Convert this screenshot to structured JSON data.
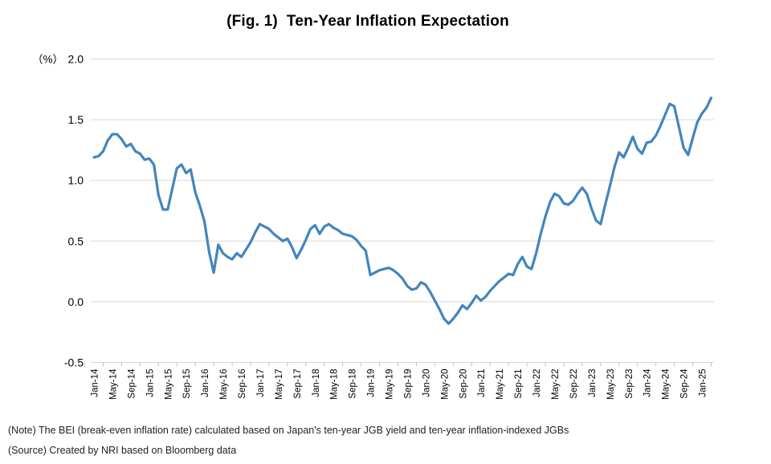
{
  "title": "(Fig. 1)  Ten-Year Inflation Expectation",
  "y_axis_unit": "（%）",
  "notes": {
    "note": "(Note) The BEI (break-even inflation rate) calculated based on Japan's ten-year JGB yield and ten-year inflation-indexed JGBs",
    "source": "(Source) Created by NRI based on Bloomberg data"
  },
  "chart_data": {
    "type": "line",
    "title": "(Fig. 1)  Ten-Year Inflation Expectation",
    "series_name": "Ten-year break-even inflation rate (BEI)",
    "ylabel": "（%）",
    "ylim": [
      -0.5,
      2.0
    ],
    "y_ticks": [
      2.0,
      1.5,
      1.0,
      0.5,
      0.0,
      -0.5
    ],
    "x_label_every": 4,
    "grid": true,
    "legend": false,
    "line_color": "#4285BE",
    "grid_color": "#D9D9D9",
    "tick_color": "#BFBFBF",
    "x": [
      "Jan-14",
      "Feb-14",
      "Mar-14",
      "Apr-14",
      "May-14",
      "Jun-14",
      "Jul-14",
      "Aug-14",
      "Sep-14",
      "Oct-14",
      "Nov-14",
      "Dec-14",
      "Jan-15",
      "Feb-15",
      "Mar-15",
      "Apr-15",
      "May-15",
      "Jun-15",
      "Jul-15",
      "Aug-15",
      "Sep-15",
      "Oct-15",
      "Nov-15",
      "Dec-15",
      "Jan-16",
      "Feb-16",
      "Mar-16",
      "Apr-16",
      "May-16",
      "Jun-16",
      "Jul-16",
      "Aug-16",
      "Sep-16",
      "Oct-16",
      "Nov-16",
      "Dec-16",
      "Jan-17",
      "Feb-17",
      "Mar-17",
      "Apr-17",
      "May-17",
      "Jun-17",
      "Jul-17",
      "Aug-17",
      "Sep-17",
      "Oct-17",
      "Nov-17",
      "Dec-17",
      "Jan-18",
      "Feb-18",
      "Mar-18",
      "Apr-18",
      "May-18",
      "Jun-18",
      "Jul-18",
      "Aug-18",
      "Sep-18",
      "Oct-18",
      "Nov-18",
      "Dec-18",
      "Jan-19",
      "Feb-19",
      "Mar-19",
      "Apr-19",
      "May-19",
      "Jun-19",
      "Jul-19",
      "Aug-19",
      "Sep-19",
      "Oct-19",
      "Nov-19",
      "Dec-19",
      "Jan-20",
      "Feb-20",
      "Mar-20",
      "Apr-20",
      "May-20",
      "Jun-20",
      "Jul-20",
      "Aug-20",
      "Sep-20",
      "Oct-20",
      "Nov-20",
      "Dec-20",
      "Jan-21",
      "Feb-21",
      "Mar-21",
      "Apr-21",
      "May-21",
      "Jun-21",
      "Jul-21",
      "Aug-21",
      "Sep-21",
      "Oct-21",
      "Nov-21",
      "Dec-21",
      "Jan-22",
      "Feb-22",
      "Mar-22",
      "Apr-22",
      "May-22",
      "Jun-22",
      "Jul-22",
      "Aug-22",
      "Sep-22",
      "Oct-22",
      "Nov-22",
      "Dec-22",
      "Jan-23",
      "Feb-23",
      "Mar-23",
      "Apr-23",
      "May-23",
      "Jun-23",
      "Jul-23",
      "Aug-23",
      "Sep-23",
      "Oct-23",
      "Nov-23",
      "Dec-23",
      "Jan-24",
      "Feb-24",
      "Mar-24",
      "Apr-24",
      "May-24",
      "Jun-24",
      "Jul-24",
      "Aug-24",
      "Sep-24",
      "Oct-24",
      "Nov-24",
      "Dec-24",
      "Jan-25",
      "Feb-25",
      "Mar-25"
    ],
    "values": [
      1.19,
      1.2,
      1.24,
      1.33,
      1.38,
      1.38,
      1.34,
      1.28,
      1.3,
      1.24,
      1.22,
      1.17,
      1.18,
      1.13,
      0.88,
      0.76,
      0.76,
      0.93,
      1.1,
      1.13,
      1.06,
      1.09,
      0.9,
      0.79,
      0.66,
      0.41,
      0.24,
      0.47,
      0.4,
      0.37,
      0.35,
      0.4,
      0.37,
      0.43,
      0.49,
      0.57,
      0.64,
      0.62,
      0.6,
      0.56,
      0.53,
      0.5,
      0.52,
      0.45,
      0.36,
      0.43,
      0.51,
      0.6,
      0.63,
      0.56,
      0.62,
      0.64,
      0.61,
      0.59,
      0.56,
      0.55,
      0.54,
      0.51,
      0.46,
      0.42,
      0.22,
      0.24,
      0.26,
      0.27,
      0.28,
      0.26,
      0.23,
      0.19,
      0.13,
      0.1,
      0.11,
      0.16,
      0.14,
      0.08,
      0.01,
      -0.06,
      -0.14,
      -0.18,
      -0.14,
      -0.09,
      -0.03,
      -0.06,
      -0.01,
      0.05,
      0.01,
      0.04,
      0.09,
      0.13,
      0.17,
      0.2,
      0.23,
      0.22,
      0.31,
      0.37,
      0.29,
      0.27,
      0.4,
      0.56,
      0.7,
      0.82,
      0.89,
      0.87,
      0.81,
      0.8,
      0.83,
      0.89,
      0.94,
      0.89,
      0.77,
      0.67,
      0.64,
      0.8,
      0.95,
      1.11,
      1.23,
      1.19,
      1.27,
      1.36,
      1.26,
      1.22,
      1.31,
      1.32,
      1.37,
      1.45,
      1.54,
      1.63,
      1.61,
      1.44,
      1.27,
      1.21,
      1.35,
      1.48,
      1.55,
      1.6,
      1.68
    ]
  }
}
